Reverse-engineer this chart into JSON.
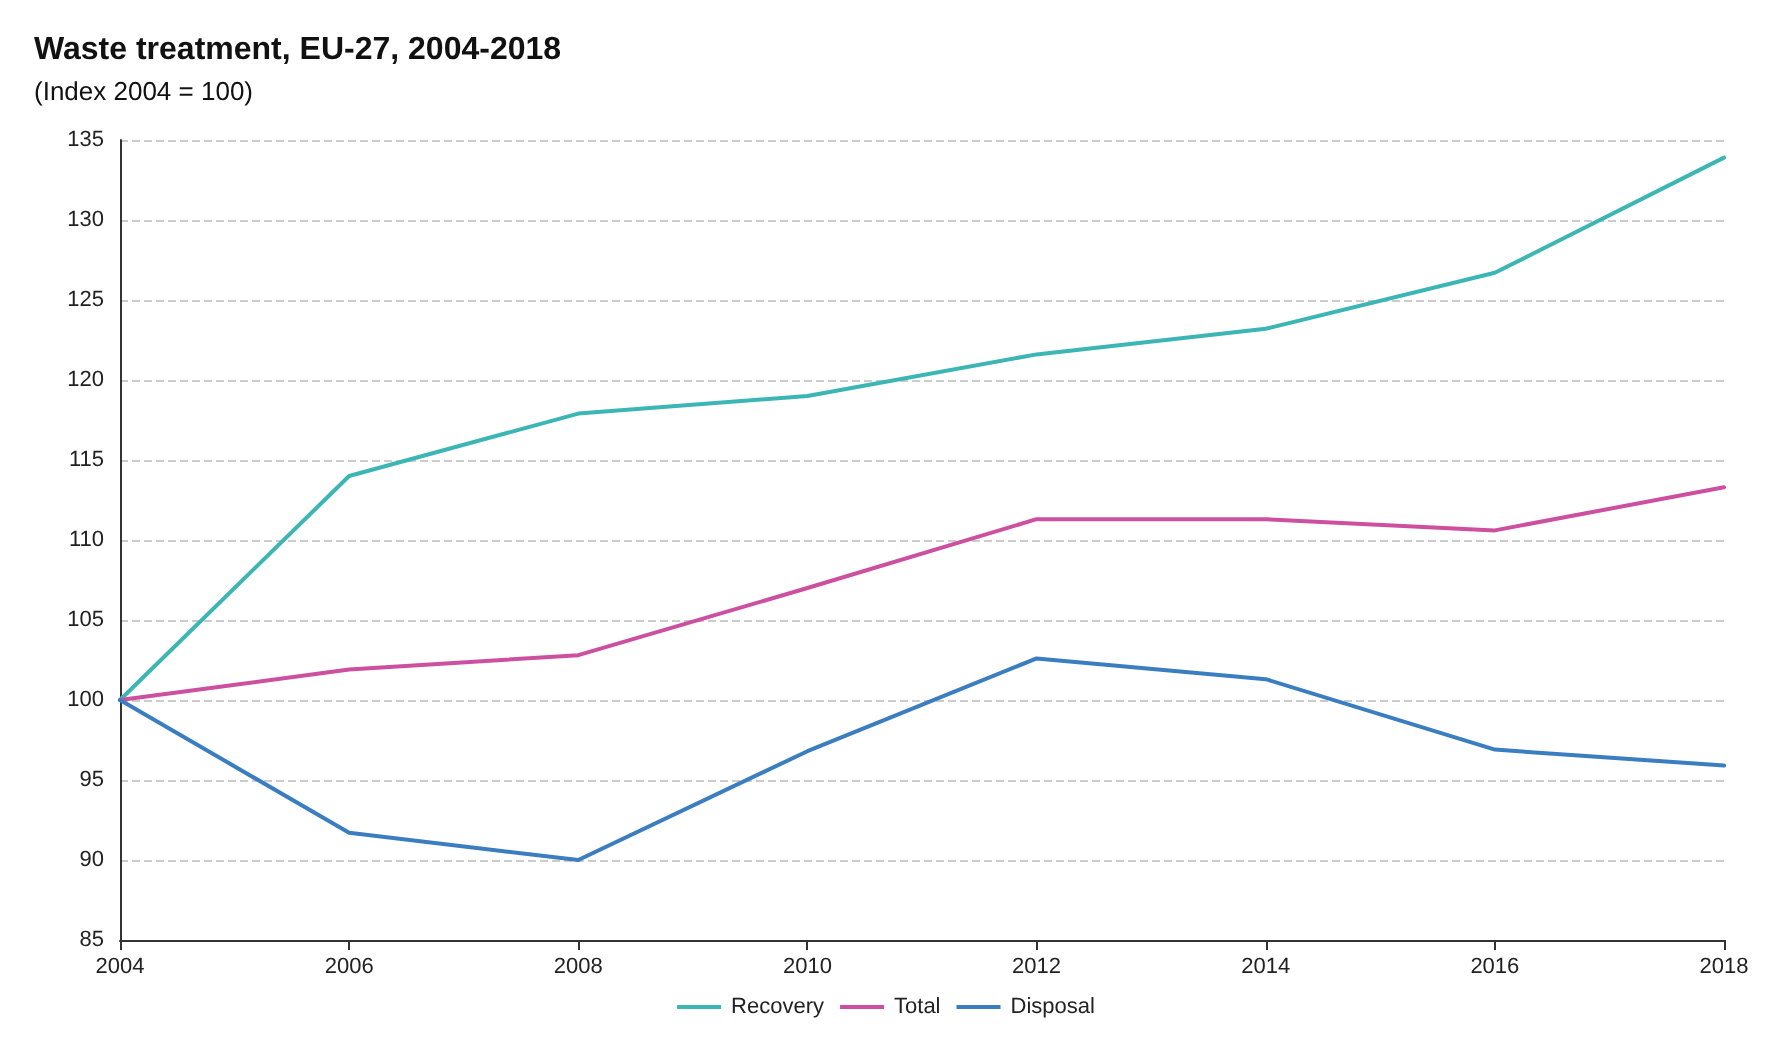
{
  "chart_data": {
    "type": "line",
    "title": "Waste treatment, EU-27, 2004-2018",
    "subtitle": "(Index 2004 = 100)",
    "x": [
      2004,
      2006,
      2008,
      2010,
      2012,
      2014,
      2016,
      2018
    ],
    "xlim": [
      2004,
      2018
    ],
    "xticks": [
      2004,
      2006,
      2008,
      2010,
      2012,
      2014,
      2016,
      2018
    ],
    "ylim": [
      85,
      135
    ],
    "yticks": [
      85,
      90,
      95,
      100,
      105,
      110,
      115,
      120,
      125,
      130,
      135
    ],
    "grid": "y",
    "legend": "bottom",
    "marker": "none",
    "line_style": "solid",
    "series": [
      {
        "name": "Recovery",
        "color": "#3cb6b4",
        "values": [
          100,
          114,
          117.9,
          119,
          121.6,
          123.2,
          126.7,
          133.9
        ]
      },
      {
        "name": "Total",
        "color": "#cc4fa0",
        "values": [
          100,
          101.9,
          102.8,
          107,
          111.3,
          111.3,
          110.6,
          113.3
        ]
      },
      {
        "name": "Disposal",
        "color": "#3b7dc1",
        "values": [
          100,
          91.7,
          90,
          96.8,
          102.6,
          101.3,
          96.9,
          95.9
        ]
      }
    ]
  }
}
